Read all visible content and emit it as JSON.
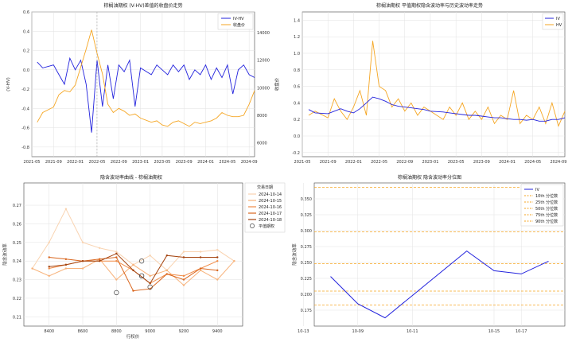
{
  "chart_data": [
    {
      "type": "line",
      "title": "棕榈油期权 (V-HV)差值的收盘价走势",
      "xlabel": "",
      "ylabel_left": "(V-HV)",
      "ylabel_right": "收盘价",
      "ylim_left": [
        -0.9,
        0.6
      ],
      "ylim_right": [
        5000,
        15500
      ],
      "xlim": [
        "2021-05",
        "2024-10"
      ],
      "x_ticks": [
        "2021-05",
        "2021-09",
        "2022-01",
        "2022-05",
        "2022-09",
        "2023-01",
        "2023-05",
        "2023-09",
        "2024-01",
        "2024-05",
        "2024-09"
      ],
      "y_ticks_left": [
        "-0.8",
        "-0.6",
        "-0.4",
        "-0.2",
        "0.0",
        "0.2",
        "0.4",
        "0.6"
      ],
      "y_ticks_right": [
        "6000",
        "8000",
        "10000",
        "12000",
        "14000"
      ],
      "grid": true,
      "legend_position": "top-right",
      "series": [
        {
          "name": "IV-HV",
          "axis": "left",
          "color": "#2222dd",
          "x": [
            "2021-06",
            "2021-07",
            "2021-09",
            "2021-10",
            "2021-11",
            "2021-12",
            "2022-01",
            "2022-02",
            "2022-03",
            "2022-04",
            "2022-05",
            "2022-06",
            "2022-07",
            "2022-08",
            "2022-09",
            "2022-10",
            "2022-11",
            "2022-12",
            "2023-01",
            "2023-03",
            "2023-04",
            "2023-05",
            "2023-06",
            "2023-07",
            "2023-08",
            "2023-09",
            "2023-10",
            "2023-11",
            "2023-12",
            "2024-01",
            "2024-02",
            "2024-03",
            "2024-04",
            "2024-05",
            "2024-06",
            "2024-07",
            "2024-08",
            "2024-09",
            "2024-10"
          ],
          "values": [
            0.08,
            0.02,
            0.05,
            -0.05,
            -0.15,
            0.12,
            0.0,
            0.1,
            -0.15,
            -0.65,
            0.1,
            -0.38,
            0.05,
            -0.3,
            0.05,
            -0.02,
            0.1,
            -0.38,
            0.02,
            -0.05,
            0.05,
            0.0,
            -0.05,
            0.05,
            -0.02,
            0.05,
            -0.1,
            0.0,
            -0.05,
            0.05,
            -0.1,
            0.02,
            -0.08,
            0.05,
            -0.25,
            0.0,
            0.05,
            -0.05,
            -0.08
          ]
        },
        {
          "name": "收盘价",
          "axis": "right",
          "color": "#f5a623",
          "x": [
            "2021-06",
            "2021-07",
            "2021-09",
            "2021-10",
            "2021-11",
            "2021-12",
            "2022-01",
            "2022-02",
            "2022-03",
            "2022-04",
            "2022-05",
            "2022-06",
            "2022-07",
            "2022-08",
            "2022-09",
            "2022-10",
            "2022-11",
            "2022-12",
            "2023-01",
            "2023-03",
            "2023-04",
            "2023-05",
            "2023-06",
            "2023-07",
            "2023-08",
            "2023-09",
            "2023-10",
            "2023-11",
            "2023-12",
            "2024-01",
            "2024-02",
            "2024-03",
            "2024-04",
            "2024-05",
            "2024-06",
            "2024-07",
            "2024-08",
            "2024-09",
            "2024-10"
          ],
          "values": [
            7500,
            8200,
            8600,
            9500,
            9800,
            9700,
            10200,
            11500,
            12800,
            14200,
            12500,
            11000,
            8800,
            8200,
            8500,
            8300,
            8000,
            8100,
            7800,
            7500,
            7600,
            7300,
            7200,
            7500,
            7600,
            7400,
            7200,
            7500,
            7400,
            7500,
            7600,
            7800,
            8200,
            8000,
            7900,
            7900,
            8000,
            8800,
            9800
          ]
        }
      ]
    },
    {
      "type": "line",
      "title": "棕榈油期权 平值期权隐含波动率与历史波动率走势",
      "xlabel": "",
      "ylabel": "",
      "ylim": [
        -0.25,
        1.5
      ],
      "xlim": [
        "2021-05",
        "2024-10"
      ],
      "x_ticks": [
        "2021-05",
        "2021-09",
        "2022-01",
        "2022-05",
        "2022-09",
        "2023-01",
        "2023-05",
        "2023-09",
        "2024-01",
        "2024-05",
        "2024-09"
      ],
      "y_ticks": [
        "-0.2",
        "0.0",
        "0.2",
        "0.4",
        "0.6",
        "0.8",
        "1.0",
        "1.2",
        "1.4"
      ],
      "grid": true,
      "legend_position": "top-right",
      "series": [
        {
          "name": "IV",
          "color": "#2222dd",
          "x": [
            "2021-06",
            "2021-07",
            "2021-09",
            "2021-10",
            "2021-11",
            "2021-12",
            "2022-01",
            "2022-02",
            "2022-03",
            "2022-04",
            "2022-05",
            "2022-06",
            "2022-07",
            "2022-08",
            "2022-09",
            "2022-10",
            "2022-11",
            "2022-12",
            "2023-01",
            "2023-03",
            "2023-04",
            "2023-05",
            "2023-06",
            "2023-07",
            "2023-08",
            "2023-09",
            "2023-10",
            "2023-11",
            "2023-12",
            "2024-01",
            "2024-02",
            "2024-03",
            "2024-04",
            "2024-05",
            "2024-06",
            "2024-07",
            "2024-08",
            "2024-09",
            "2024-10"
          ],
          "values": [
            0.32,
            0.28,
            0.27,
            0.3,
            0.33,
            0.3,
            0.28,
            0.33,
            0.4,
            0.47,
            0.45,
            0.42,
            0.38,
            0.36,
            0.35,
            0.34,
            0.33,
            0.32,
            0.3,
            0.29,
            0.28,
            0.27,
            0.26,
            0.25,
            0.25,
            0.24,
            0.23,
            0.22,
            0.22,
            0.21,
            0.2,
            0.2,
            0.19,
            0.2,
            0.18,
            0.18,
            0.2,
            0.2,
            0.22
          ]
        },
        {
          "name": "HV",
          "color": "#f5a623",
          "x": [
            "2021-06",
            "2021-07",
            "2021-09",
            "2021-10",
            "2021-11",
            "2021-12",
            "2022-01",
            "2022-02",
            "2022-03",
            "2022-04",
            "2022-05",
            "2022-06",
            "2022-07",
            "2022-08",
            "2022-09",
            "2022-10",
            "2022-11",
            "2022-12",
            "2023-01",
            "2023-03",
            "2023-04",
            "2023-05",
            "2023-06",
            "2023-07",
            "2023-08",
            "2023-09",
            "2023-10",
            "2023-11",
            "2023-12",
            "2024-01",
            "2024-02",
            "2024-03",
            "2024-04",
            "2024-05",
            "2024-06",
            "2024-07",
            "2024-08",
            "2024-09",
            "2024-10"
          ],
          "values": [
            0.25,
            0.3,
            0.22,
            0.45,
            0.3,
            0.2,
            0.35,
            0.55,
            0.25,
            1.15,
            0.6,
            0.55,
            0.35,
            0.45,
            0.3,
            0.4,
            0.25,
            0.35,
            0.3,
            0.2,
            0.35,
            0.25,
            0.4,
            0.2,
            0.3,
            0.2,
            0.35,
            0.15,
            0.25,
            0.2,
            0.55,
            0.15,
            0.25,
            0.2,
            0.35,
            0.15,
            0.4,
            0.12,
            0.3
          ]
        }
      ]
    },
    {
      "type": "line",
      "title": "隐含波动率曲线 - 棕榈油期权",
      "xlabel": "行权价",
      "ylabel": "隐含波动率",
      "xlim": [
        8250,
        9550
      ],
      "ylim": [
        0.205,
        0.282
      ],
      "x_ticks": [
        "8400",
        "8600",
        "8800",
        "9000",
        "9200",
        "9400"
      ],
      "y_ticks": [
        "0.21",
        "0.22",
        "0.23",
        "0.24",
        "0.25",
        "0.26",
        "0.27"
      ],
      "grid": true,
      "legend_title": "交易日期",
      "legend_position": "outside-right",
      "atm_label": "平值期权",
      "series": [
        {
          "name": "2024-10-14",
          "color": "#f9d3b0",
          "x": [
            8300,
            8400,
            8500,
            8600,
            8700,
            8800,
            8900,
            9000,
            9100,
            9200,
            9300,
            9400,
            9500
          ],
          "values": [
            0.236,
            0.25,
            0.268,
            0.25,
            0.247,
            0.245,
            0.238,
            0.243,
            0.235,
            0.245,
            0.245,
            0.246,
            0.24
          ]
        },
        {
          "name": "2024-10-15",
          "color": "#f7b27a",
          "x": [
            8300,
            8400,
            8500,
            8600,
            8700,
            8800,
            8900,
            9000,
            9100,
            9200,
            9300,
            9400,
            9500
          ],
          "values": [
            0.236,
            0.232,
            0.236,
            0.236,
            0.241,
            0.23,
            0.238,
            0.232,
            0.235,
            0.227,
            0.235,
            0.23,
            0.24
          ]
        },
        {
          "name": "2024-10-16",
          "color": "#f08a45",
          "x": [
            8400,
            8500,
            8600,
            8700,
            8800,
            8900,
            9000,
            9100,
            9200,
            9300,
            9400
          ],
          "values": [
            0.236,
            0.238,
            0.24,
            0.24,
            0.24,
            0.235,
            0.228,
            0.233,
            0.232,
            0.236,
            0.24
          ]
        },
        {
          "name": "2024-10-17",
          "color": "#d9661e",
          "x": [
            8400,
            8500,
            8600,
            8700,
            8800,
            8900,
            9000,
            9100,
            9200,
            9300,
            9400
          ],
          "values": [
            0.242,
            0.241,
            0.24,
            0.241,
            0.242,
            0.224,
            0.225,
            0.233,
            0.23,
            0.236,
            0.235
          ]
        },
        {
          "name": "2024-10-18",
          "color": "#a44410",
          "x": [
            8400,
            8500,
            8600,
            8700,
            8800,
            8900,
            9000,
            9100,
            9200,
            9300,
            9400
          ],
          "values": [
            0.237,
            0.238,
            0.24,
            0.24,
            0.244,
            0.235,
            0.228,
            0.243,
            0.242,
            0.242,
            0.242
          ]
        }
      ],
      "atm_points": {
        "x": [
          8800,
          8950,
          8950,
          8950,
          9000
        ],
        "values": [
          0.223,
          0.24,
          0.232,
          0.232,
          0.226
        ]
      }
    },
    {
      "type": "line",
      "title": "棕榈油期权 隐含波动率分位图",
      "xlabel": "",
      "ylabel": "隐含波动率",
      "ylim": [
        0.15,
        0.375
      ],
      "x": [
        "10-08",
        "10-09",
        "10-10",
        "10-11",
        "10-12",
        "10-14",
        "10-15",
        "10-17",
        "10-18"
      ],
      "x_ticks": [
        "10-09",
        "10-11",
        "10-13",
        "10-15",
        "10-17"
      ],
      "y_ticks": [
        "0.175",
        "0.200",
        "0.225",
        "0.250",
        "0.275",
        "0.300",
        "0.325",
        "0.350"
      ],
      "grid": true,
      "legend_position": "top-right",
      "series": [
        {
          "name": "IV",
          "color": "#2222dd",
          "x": [
            "10-08",
            "10-09",
            "10-10",
            "10-11",
            "10-14",
            "10-15",
            "10-17",
            "10-18"
          ],
          "values": [
            0.228,
            0.185,
            0.163,
            0.198,
            0.268,
            0.237,
            0.232,
            0.252
          ]
        }
      ],
      "percentiles": [
        {
          "name": "10th 分位数",
          "value": 0.183
        },
        {
          "name": "25th 分位数",
          "value": 0.205
        },
        {
          "name": "50th 分位数",
          "value": 0.248
        },
        {
          "name": "75th 分位数",
          "value": 0.298
        },
        {
          "name": "90th 分位数",
          "value": 0.368
        }
      ]
    }
  ]
}
